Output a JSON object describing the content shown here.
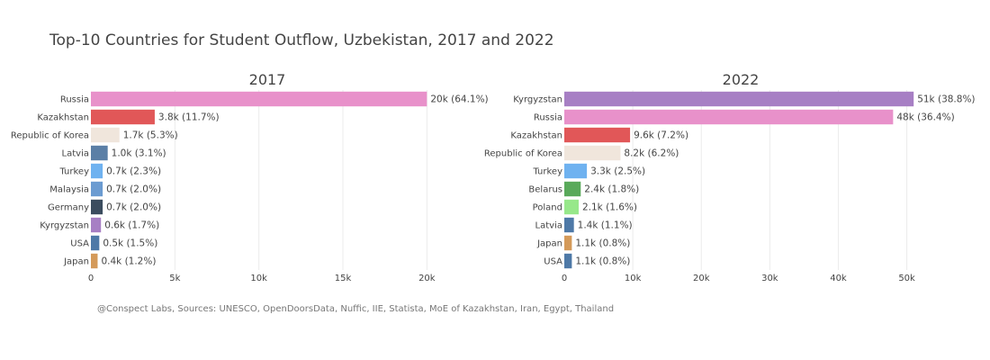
{
  "title": "Top-10 Countries for Student Outflow, Uzbekistan, 2017 and 2022",
  "source": "@Conspect Labs, Sources: UNESCO, OpenDoorsData, Nuffic, IIE, Statista, MoE of Kazakhstan, Iran, Egypt, Thailand",
  "chart_data": [
    {
      "type": "bar",
      "orientation": "horizontal",
      "title": "2017",
      "categories": [
        "Russia",
        "Kazakhstan",
        "Republic of Korea",
        "Latvia",
        "Turkey",
        "Malaysia",
        "Germany",
        "Kyrgyzstan",
        "USA",
        "Japan"
      ],
      "values": [
        20000,
        3800,
        1700,
        1000,
        700,
        700,
        700,
        600,
        500,
        400
      ],
      "labels": [
        "20k (64.1%)",
        "3.8k (11.7%)",
        "1.7k (5.3%)",
        "1.0k (3.1%)",
        "0.7k (2.3%)",
        "0.7k (2.0%)",
        "0.7k (2.0%)",
        "0.6k (1.7%)",
        "0.5k (1.5%)",
        "0.4k (1.2%)"
      ],
      "colors": [
        "#e891ca",
        "#e15758",
        "#f0e6dc",
        "#5b7fa6",
        "#6fb2f0",
        "#6b9bd1",
        "#3b4c5e",
        "#a77fc4",
        "#4e79a7",
        "#d49a5a"
      ],
      "xlim": [
        0,
        21000
      ],
      "xticks": [
        0,
        5000,
        10000,
        15000,
        20000
      ],
      "xtick_labels": [
        "0",
        "5k",
        "10k",
        "15k",
        "20k"
      ],
      "grid": true
    },
    {
      "type": "bar",
      "orientation": "horizontal",
      "title": "2022",
      "categories": [
        "Kyrgyzstan",
        "Russia",
        "Kazakhstan",
        "Republic of Korea",
        "Turkey",
        "Belarus",
        "Poland",
        "Latvia",
        "Japan",
        "USA"
      ],
      "values": [
        51000,
        48000,
        9600,
        8200,
        3300,
        2400,
        2100,
        1400,
        1100,
        1100
      ],
      "labels": [
        "51k (38.8%)",
        "48k (36.4%)",
        "9.6k (7.2%)",
        "8.2k (6.2%)",
        "3.3k (2.5%)",
        "2.4k (1.8%)",
        "2.1k (1.6%)",
        "1.4k (1.1%)",
        "1.1k (0.8%)",
        "1.1k (0.8%)"
      ],
      "colors": [
        "#a77fc4",
        "#e891ca",
        "#e15758",
        "#f0e6dc",
        "#6fb2f0",
        "#59a95a",
        "#97e88a",
        "#4e79a7",
        "#d49a5a",
        "#4e79a7"
      ],
      "xlim": [
        0,
        51500
      ],
      "xticks": [
        0,
        10000,
        20000,
        30000,
        40000,
        50000
      ],
      "xtick_labels": [
        "0",
        "10k",
        "20k",
        "30k",
        "40k",
        "50k"
      ],
      "grid": true
    }
  ]
}
